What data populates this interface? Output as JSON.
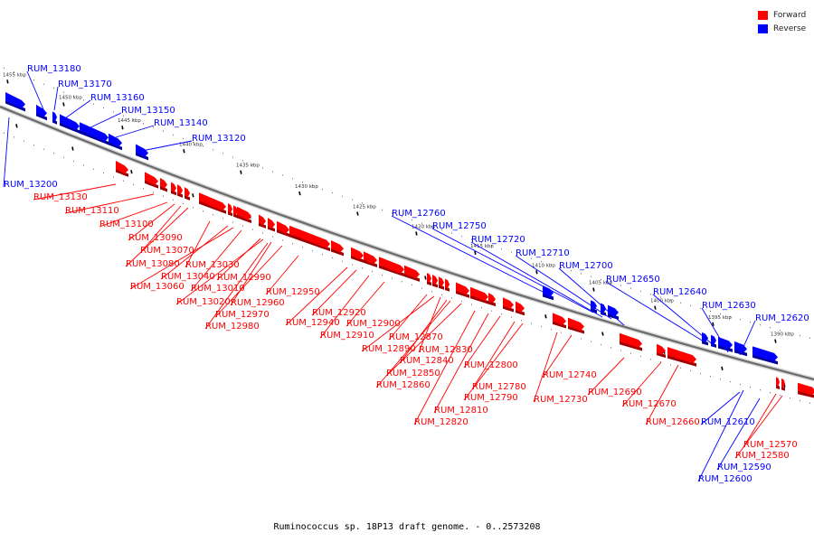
{
  "caption": "Ruminococcus sp. 18P13 draft genome. - 0..2573208",
  "legend": {
    "items": [
      {
        "label": "Forward",
        "color": "#ff0000"
      },
      {
        "label": "Reverse",
        "color": "#0000ff"
      }
    ]
  },
  "colors": {
    "forward": "#ff0000",
    "reverse": "#0000ff",
    "backbone": "#777777"
  },
  "ticks": [
    "1455 kbp",
    "1450 kbp",
    "1445 kbp",
    "1440 kbp",
    "1435 kbp",
    "1430 kbp",
    "1425 kbp",
    "1420 kbp",
    "1415 kbp",
    "1410 kbp",
    "1405 kbp",
    "1400 kbp",
    "1395 kbp",
    "1390 kbp"
  ],
  "reverse_genes": [
    "RUM_13180",
    "RUM_13170",
    "RUM_13160",
    "RUM_13150",
    "RUM_13140",
    "RUM_13120",
    "RUM_13200",
    "RUM_12760",
    "RUM_12750",
    "RUM_12720",
    "RUM_12710",
    "RUM_12700",
    "RUM_12650",
    "RUM_12640",
    "RUM_12630",
    "RUM_12620",
    "RUM_12610",
    "RUM_12590",
    "RUM_12600"
  ],
  "forward_genes": [
    "RUM_13130",
    "RUM_13110",
    "RUM_13100",
    "RUM_13090",
    "RUM_13070",
    "RUM_13080",
    "RUM_13030",
    "RUM_13040",
    "RUM_13060",
    "RUM_13010",
    "RUM_12990",
    "RUM_13020",
    "RUM_12960",
    "RUM_12970",
    "RUM_12980",
    "RUM_12950",
    "RUM_12920",
    "RUM_12940",
    "RUM_12910",
    "RUM_12900",
    "RUM_12870",
    "RUM_12890",
    "RUM_12830",
    "RUM_12840",
    "RUM_12850",
    "RUM_12860",
    "RUM_12800",
    "RUM_12780",
    "RUM_12790",
    "RUM_12810",
    "RUM_12820",
    "RUM_12740",
    "RUM_12730",
    "RUM_12690",
    "RUM_12670",
    "RUM_12660",
    "RUM_12570",
    "RUM_12580"
  ]
}
